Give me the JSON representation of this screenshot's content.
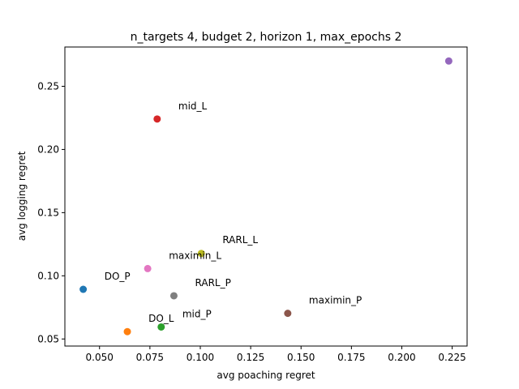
{
  "chart_data": {
    "type": "scatter",
    "title": "n_targets 4, budget 2, horizon 1, max_epochs 2",
    "xlabel": "avg poaching regret",
    "ylabel": "avg logging regret",
    "xlim": [
      0.0328,
      0.2324
    ],
    "ylim": [
      0.0444,
      0.2811
    ],
    "xticks": [
      0.05,
      0.075,
      0.1,
      0.125,
      0.15,
      0.175,
      0.2,
      0.225
    ],
    "xtick_labels": [
      "0.050",
      "0.075",
      "0.100",
      "0.125",
      "0.150",
      "0.175",
      "0.200",
      "0.225"
    ],
    "yticks": [
      0.05,
      0.1,
      0.15,
      0.2,
      0.25
    ],
    "ytick_labels": [
      "0.05",
      "0.10",
      "0.15",
      "0.20",
      "0.25"
    ],
    "grid": false,
    "points": [
      {
        "label": "DO_P",
        "x": 0.0419,
        "y": 0.0893,
        "color": "#1f77b4",
        "lx": 0.0524,
        "ly": 0.0996
      },
      {
        "label": "DO_L",
        "x": 0.0638,
        "y": 0.0558,
        "color": "#ff7f0e",
        "lx": 0.0743,
        "ly": 0.0661
      },
      {
        "label": "mid_P",
        "x": 0.0806,
        "y": 0.0595,
        "color": "#2ca02c",
        "lx": 0.0911,
        "ly": 0.0698
      },
      {
        "label": "mid_L",
        "x": 0.0786,
        "y": 0.2241,
        "color": "#d62728",
        "lx": 0.0891,
        "ly": 0.2344
      },
      {
        "label": "maximin_L",
        "x": 0.2233,
        "y": 0.27,
        "color": "#9467bd",
        "lx": null,
        "ly": null
      },
      {
        "label": "maximin_P",
        "x": 0.1434,
        "y": 0.0703,
        "color": "#8c564b",
        "lx": 0.1539,
        "ly": 0.0806
      },
      {
        "label": "RARL_L",
        "x": 0.0739,
        "y": 0.1057,
        "color": "#e377c2",
        "lx": null,
        "ly": null
      },
      {
        "label": "RARL_P",
        "x": 0.0869,
        "y": 0.0842,
        "color": "#7f7f7f",
        "lx": 0.0974,
        "ly": 0.0945
      },
      {
        "label": "",
        "x": 0.1005,
        "y": 0.1177,
        "color": "#bcbd22",
        "lx": null,
        "ly": null
      }
    ],
    "annotations": [
      {
        "text": "maximin_L",
        "x": 0.0844,
        "y": 0.1158
      },
      {
        "text": "RARL_L",
        "x": 0.111,
        "y": 0.1285
      }
    ]
  }
}
